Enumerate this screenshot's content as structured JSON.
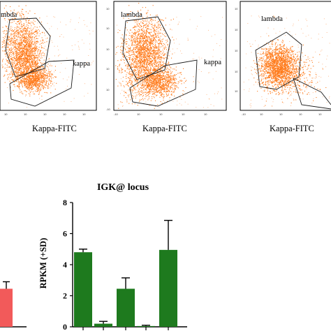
{
  "colors": {
    "dots": "#ff7a1a",
    "bar_igk": "#1e7a1e",
    "bar_left": "#f25a5a",
    "gate": "#1a1a1a",
    "frame": "#000000"
  },
  "chart_data": [
    {
      "type": "scatter",
      "panel": "flow-plot-1",
      "xlabel": "Kappa-FITC",
      "gates": [
        "lambda",
        "kappa"
      ],
      "gate_labels_shown": [
        "mbda",
        "kappa"
      ]
    },
    {
      "type": "scatter",
      "panel": "flow-plot-2",
      "xlabel": "Kappa-FITC",
      "gates": [
        "lambda",
        "kappa"
      ],
      "gate_labels_shown": [
        "lambda",
        "kappa"
      ]
    },
    {
      "type": "scatter",
      "panel": "flow-plot-3",
      "xlabel": "Kappa-FITC",
      "gates": [
        "lambda"
      ],
      "gate_labels_shown": [
        "lambda"
      ]
    },
    {
      "type": "bar",
      "title": "IGK@ locus",
      "ylabel": "RPKM (+SD)",
      "ylim": [
        0,
        8
      ],
      "yticks": [
        0,
        2,
        4,
        6,
        8
      ],
      "categories": [
        "",
        "",
        "",
        "",
        ""
      ],
      "values": [
        4.8,
        0.2,
        2.45,
        0.05,
        4.95
      ],
      "errors": [
        0.2,
        0.15,
        0.7,
        0.05,
        1.9
      ],
      "grid": false
    },
    {
      "type": "bar",
      "partial": true,
      "values": [
        2.45
      ],
      "errors": [
        0.45
      ],
      "ylim": [
        0,
        8
      ]
    }
  ]
}
